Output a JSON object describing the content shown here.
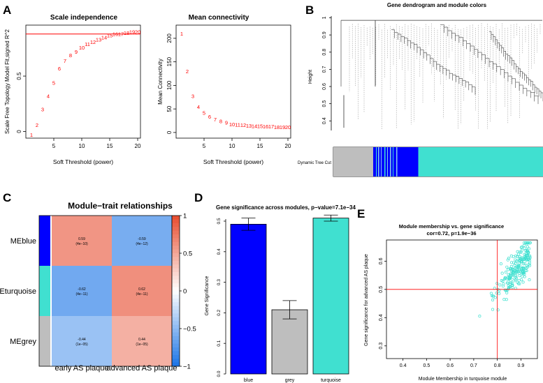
{
  "panels": {
    "A": "A",
    "B": "B",
    "C": "C",
    "D": "D",
    "E": "E"
  },
  "colors": {
    "red": "#ff0000",
    "blue": "#0000ff",
    "turquoise": "#40e0d0",
    "grey": "#bebebe",
    "lightblue": "#87ceeb",
    "axis": "#000000"
  },
  "chart_data": [
    {
      "id": "scale_independence",
      "type": "scatter",
      "title": "Scale independence",
      "xlabel": "Soft Threshold (power)",
      "ylabel": "Scale Free Topology Model Fit,signed R^2",
      "xlim": [
        0,
        20.5
      ],
      "ylim": [
        -0.06,
        0.96
      ],
      "xticks": [
        5,
        10,
        15,
        20
      ],
      "yticks": [
        0.0,
        0.5
      ],
      "x": [
        1,
        2,
        3,
        4,
        5,
        6,
        7,
        8,
        9,
        10,
        11,
        12,
        13,
        14,
        15,
        16,
        17,
        18,
        19,
        20
      ],
      "y": [
        -0.03,
        0.06,
        0.2,
        0.32,
        0.44,
        0.57,
        0.64,
        0.69,
        0.72,
        0.76,
        0.79,
        0.81,
        0.83,
        0.85,
        0.87,
        0.88,
        0.88,
        0.89,
        0.9,
        0.9
      ],
      "point_labels": [
        "1",
        "2",
        "3",
        "4",
        "5",
        "6",
        "7",
        "8",
        "9",
        "10",
        "11",
        "12",
        "13",
        "14",
        "15",
        "16",
        "17",
        "18",
        "19",
        "20"
      ],
      "hline": 0.88
    },
    {
      "id": "mean_connectivity",
      "type": "scatter",
      "title": "Mean connectivity",
      "xlabel": "Soft Threshold (power)",
      "ylabel": "Mean Connectivity",
      "xlim": [
        0,
        20.5
      ],
      "ylim": [
        -12,
        228
      ],
      "xticks": [
        5,
        10,
        15,
        20
      ],
      "yticks": [
        0,
        50,
        100,
        150,
        200
      ],
      "x": [
        1,
        2,
        3,
        4,
        5,
        6,
        7,
        8,
        9,
        10,
        11,
        12,
        13,
        14,
        15,
        16,
        17,
        18,
        19,
        20
      ],
      "y": [
        210,
        130,
        78,
        55,
        42,
        34,
        28,
        24,
        21,
        18,
        17,
        16,
        15,
        14,
        14,
        13,
        13,
        12,
        12,
        12
      ],
      "point_labels": [
        "1",
        "2",
        "3",
        "4",
        "5",
        "6",
        "7",
        "8",
        "9",
        "10",
        "11",
        "12",
        "13",
        "14",
        "15",
        "16",
        "17",
        "18",
        "19",
        "20"
      ]
    },
    {
      "id": "dendrogram",
      "type": "dendrogram",
      "title": "Gene dendrogram and module colors",
      "ylabel": "Height",
      "ylim": [
        0.32,
        1.01
      ],
      "yticks": [
        0.4,
        0.5,
        0.6,
        0.7,
        0.8,
        0.9,
        1.0
      ],
      "colorbar_label": "Dynamic Tree Cut",
      "module_segments": [
        {
          "module": "grey",
          "fraction": 0.19
        },
        {
          "module": "blue",
          "fraction": 0.215
        },
        {
          "module": "turquoise",
          "fraction": 0.595
        }
      ]
    },
    {
      "id": "module_trait",
      "type": "heatmap",
      "title": "Module−trait relationships",
      "rows": [
        "MEblue",
        "MEturquoise",
        "MEgrey"
      ],
      "row_colors": [
        "#0000ff",
        "#40e0d0",
        "#bebebe"
      ],
      "columns": [
        "early AS plaque",
        "advanced AS plaque"
      ],
      "values": [
        [
          0.59,
          -0.59
        ],
        [
          -0.62,
          0.62
        ],
        [
          -0.44,
          0.44
        ]
      ],
      "cell_text": [
        [
          "0.59",
          "-0.59"
        ],
        [
          "-0.62",
          "0.62"
        ],
        [
          "-0.44",
          "0.44"
        ]
      ],
      "cell_pvalues": [
        [
          "(4e−10)",
          "(4e−12)"
        ],
        [
          "(4e−11)",
          "(4e−11)"
        ],
        [
          "(1e−05)",
          "(1e−05)"
        ]
      ],
      "scale_ticks": [
        1,
        0.5,
        0,
        -0.5,
        -1
      ],
      "scale_tick_labels": [
        "1",
        "0.5",
        "0",
        "−0.5",
        "−1"
      ],
      "vlim": [
        -1,
        1
      ]
    },
    {
      "id": "gene_significance",
      "type": "bar",
      "title": "Gene significance across modules, p−value=7.1e−34",
      "ylabel": "Gene Significance",
      "categories": [
        "blue",
        "grey",
        "turquoise"
      ],
      "values": [
        0.49,
        0.21,
        0.51
      ],
      "errors": [
        0.02,
        0.03,
        0.01
      ],
      "bar_colors": [
        "#0000ff",
        "#bebebe",
        "#40e0d0"
      ],
      "ylim": [
        0,
        0.52
      ],
      "yticks": [
        0.0,
        0.1,
        0.2,
        0.3,
        0.4,
        0.5
      ],
      "ytick_labels": [
        "0.0",
        "0.1",
        "0.2",
        "0.3",
        "0.4",
        "0.5"
      ]
    },
    {
      "id": "mm_vs_gs",
      "type": "scatter",
      "title": "Module membership vs. gene significance",
      "subtitle": "cor=0.72, p=1.9e−36",
      "xlabel": "Module Membership in turquoise module",
      "ylabel": "Gene significance for advanced AS plaque",
      "xlim": [
        0.33,
        0.97
      ],
      "ylim": [
        0.255,
        0.675
      ],
      "xticks": [
        0.4,
        0.5,
        0.6,
        0.7,
        0.8,
        0.9
      ],
      "yticks": [
        0.3,
        0.4,
        0.5,
        0.6
      ],
      "vline": 0.8,
      "hline": 0.5,
      "n_points": 220,
      "correlation": 0.72
    }
  ]
}
